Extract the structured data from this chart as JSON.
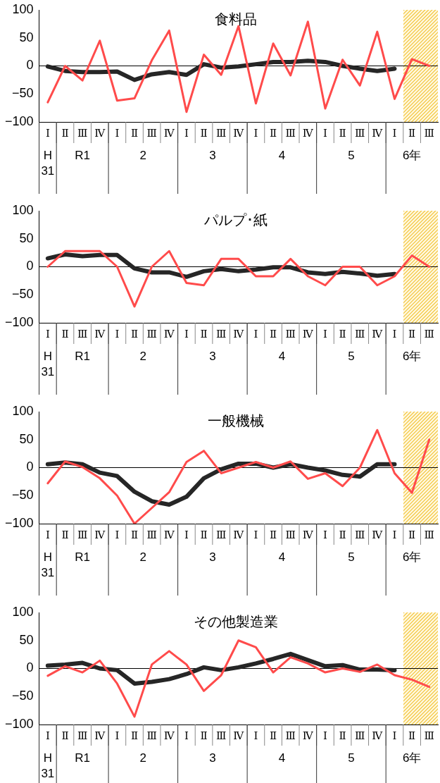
{
  "chart_data": [
    {
      "type": "line",
      "title": "食料品",
      "categories": [
        "Ⅰ",
        "Ⅱ",
        "Ⅲ",
        "Ⅳ",
        "Ⅰ",
        "Ⅱ",
        "Ⅲ",
        "Ⅳ",
        "Ⅰ",
        "Ⅱ",
        "Ⅲ",
        "Ⅳ",
        "Ⅰ",
        "Ⅱ",
        "Ⅲ",
        "Ⅳ",
        "Ⅰ",
        "Ⅱ",
        "Ⅲ",
        "Ⅳ",
        "Ⅰ",
        "Ⅱ",
        "Ⅲ"
      ],
      "ylim": [
        -100,
        100
      ],
      "yticks": [
        -100,
        -50,
        0,
        50,
        100
      ],
      "grid": false,
      "legend": false,
      "annotations": [
        "H31",
        "R1",
        "2",
        "3",
        "4",
        "5",
        "6年"
      ],
      "ref_lines": [
        {
          "axis": "y",
          "value": 0,
          "color": "#000000"
        }
      ],
      "series": [
        {
          "color": "#ff4b4b",
          "values": [
            -65,
            0,
            -26,
            45,
            -62,
            -58,
            10,
            63,
            -82,
            20,
            -16,
            71,
            -67,
            40,
            -17,
            79,
            -76,
            11,
            -35,
            61,
            -59,
            12,
            0
          ]
        },
        {
          "color": "#262626",
          "values": [
            -1,
            -9,
            -11,
            -11,
            -10,
            -25,
            -15,
            -11,
            -16,
            3,
            -3,
            -1,
            3,
            7,
            7,
            9,
            7,
            0,
            -5,
            -9,
            -5,
            null,
            null
          ]
        }
      ]
    },
    {
      "type": "line",
      "title": "パルプ･紙",
      "categories": [
        "Ⅰ",
        "Ⅱ",
        "Ⅲ",
        "Ⅳ",
        "Ⅰ",
        "Ⅱ",
        "Ⅲ",
        "Ⅳ",
        "Ⅰ",
        "Ⅱ",
        "Ⅲ",
        "Ⅳ",
        "Ⅰ",
        "Ⅱ",
        "Ⅲ",
        "Ⅳ",
        "Ⅰ",
        "Ⅱ",
        "Ⅲ",
        "Ⅳ",
        "Ⅰ",
        "Ⅱ",
        "Ⅲ"
      ],
      "ylim": [
        -100,
        100
      ],
      "yticks": [
        -100,
        -50,
        0,
        50,
        100
      ],
      "grid": false,
      "legend": false,
      "annotations": [
        "H31",
        "R1",
        "2",
        "3",
        "4",
        "5",
        "6年"
      ],
      "ref_lines": [
        {
          "axis": "y",
          "value": 0,
          "color": "#000000"
        }
      ],
      "series": [
        {
          "color": "#ff4b4b",
          "values": [
            0,
            28,
            28,
            28,
            0,
            -71,
            0,
            28,
            -29,
            -33,
            14,
            14,
            -17,
            -17,
            14,
            -17,
            -33,
            0,
            0,
            -33,
            -17,
            20,
            0
          ]
        },
        {
          "color": "#262626",
          "values": [
            15,
            22,
            19,
            21,
            21,
            -3,
            -10,
            -10,
            -18,
            -8,
            -4,
            -8,
            -5,
            -1,
            -1,
            -10,
            -13,
            -9,
            -12,
            -16,
            -13,
            null,
            null
          ]
        }
      ]
    },
    {
      "type": "line",
      "title": "一般機械",
      "categories": [
        "Ⅰ",
        "Ⅱ",
        "Ⅲ",
        "Ⅳ",
        "Ⅰ",
        "Ⅱ",
        "Ⅲ",
        "Ⅳ",
        "Ⅰ",
        "Ⅱ",
        "Ⅲ",
        "Ⅳ",
        "Ⅰ",
        "Ⅱ",
        "Ⅲ",
        "Ⅳ",
        "Ⅰ",
        "Ⅱ",
        "Ⅲ",
        "Ⅳ",
        "Ⅰ",
        "Ⅱ",
        "Ⅲ"
      ],
      "ylim": [
        -100,
        100
      ],
      "yticks": [
        -100,
        -50,
        0,
        50,
        100
      ],
      "grid": false,
      "legend": false,
      "annotations": [
        "H31",
        "R1",
        "2",
        "3",
        "4",
        "5",
        "6年"
      ],
      "ref_lines": [
        {
          "axis": "y",
          "value": 0,
          "color": "#000000"
        }
      ],
      "series": [
        {
          "color": "#ff4b4b",
          "values": [
            -28,
            11,
            1,
            -19,
            -50,
            -100,
            -72,
            -44,
            10,
            30,
            -10,
            0,
            10,
            0,
            11,
            -20,
            -10,
            -33,
            0,
            67,
            -10,
            -45,
            50
          ]
        },
        {
          "color": "#262626",
          "values": [
            6,
            9,
            6,
            -9,
            -15,
            -43,
            -60,
            -66,
            -52,
            -19,
            -3,
            7,
            7,
            0,
            6,
            0,
            -5,
            -13,
            -16,
            6,
            6,
            null,
            null
          ]
        }
      ]
    },
    {
      "type": "line",
      "title": "その他製造業",
      "categories": [
        "Ⅰ",
        "Ⅱ",
        "Ⅲ",
        "Ⅳ",
        "Ⅰ",
        "Ⅱ",
        "Ⅲ",
        "Ⅳ",
        "Ⅰ",
        "Ⅱ",
        "Ⅲ",
        "Ⅳ",
        "Ⅰ",
        "Ⅱ",
        "Ⅲ",
        "Ⅳ",
        "Ⅰ",
        "Ⅱ",
        "Ⅲ",
        "Ⅳ",
        "Ⅰ",
        "Ⅱ",
        "Ⅲ"
      ],
      "ylim": [
        -100,
        100
      ],
      "yticks": [
        -100,
        -50,
        0,
        50,
        100
      ],
      "grid": false,
      "legend": false,
      "annotations": [
        "H31",
        "R1",
        "2",
        "3",
        "4",
        "5",
        "6年"
      ],
      "ref_lines": [
        {
          "axis": "y",
          "value": 0,
          "color": "#000000"
        }
      ],
      "series": [
        {
          "color": "#ff4b4b",
          "values": [
            -13,
            4,
            -7,
            14,
            -27,
            -86,
            7,
            31,
            7,
            -40,
            -12,
            50,
            38,
            -7,
            20,
            9,
            -7,
            0,
            -6,
            7,
            -12,
            -20,
            -33
          ]
        },
        {
          "color": "#262626",
          "values": [
            5,
            7,
            10,
            0,
            -3,
            -27,
            -24,
            -19,
            -10,
            2,
            -3,
            2,
            9,
            17,
            26,
            15,
            4,
            6,
            -2,
            -2,
            -3,
            null,
            null
          ]
        }
      ]
    }
  ]
}
